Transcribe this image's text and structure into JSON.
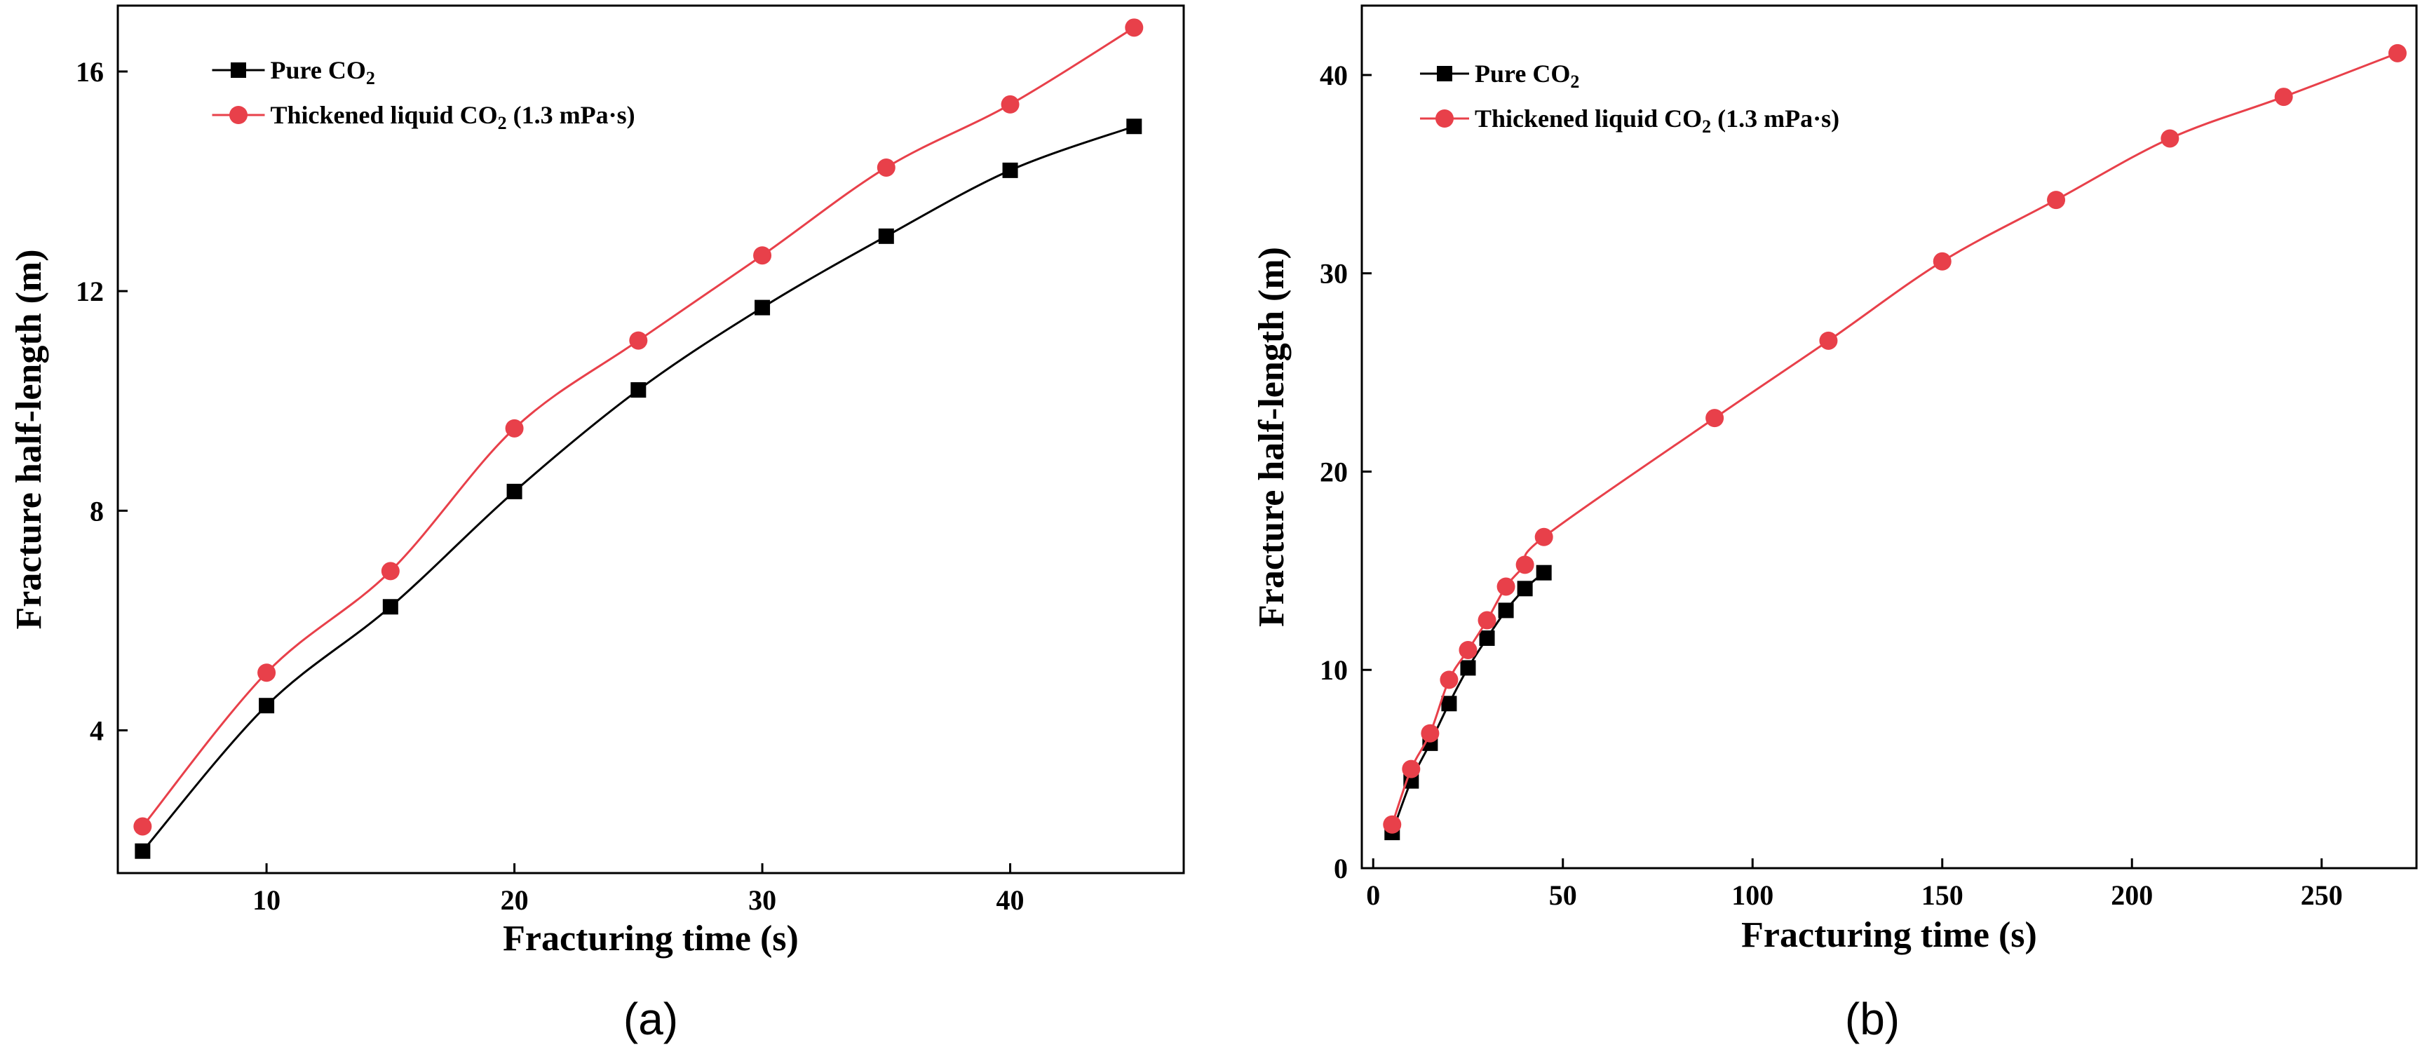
{
  "chart_data": [
    {
      "type": "line",
      "panel_label": "(a)",
      "xlabel": "Fracturing time (s)",
      "ylabel": "Fracture half-length (m)",
      "xlim": [
        4,
        47
      ],
      "ylim": [
        1.4,
        17.2
      ],
      "xticks": [
        10,
        20,
        30,
        40
      ],
      "yticks": [
        4,
        8,
        12,
        16
      ],
      "legend_position": "top-left",
      "series": [
        {
          "name": "Pure CO2",
          "label_prefix": "Pure CO",
          "label_sub": "2",
          "label_suffix": "",
          "color": "#000000",
          "marker": "square",
          "x": [
            5,
            10,
            15,
            20,
            25,
            30,
            35,
            40,
            45
          ],
          "values": [
            1.8,
            4.45,
            6.25,
            8.35,
            10.2,
            11.7,
            13.0,
            14.2,
            15.0
          ]
        },
        {
          "name": "Thickened liquid CO2 (1.3 mPa·s)",
          "label_prefix": "Thickened liquid CO",
          "label_sub": "2",
          "label_suffix": " (1.3 mPa·s)",
          "color": "#e8404a",
          "marker": "circle",
          "x": [
            5,
            10,
            15,
            20,
            25,
            30,
            35,
            40,
            45
          ],
          "values": [
            2.25,
            5.05,
            6.9,
            9.5,
            11.1,
            12.65,
            14.25,
            15.4,
            16.8
          ]
        }
      ]
    },
    {
      "type": "line",
      "panel_label": "(b)",
      "xlabel": "Fracturing time (s)",
      "ylabel": "Fracture half-length (m)",
      "xlim": [
        -3,
        275
      ],
      "ylim": [
        0,
        43.5
      ],
      "xticks": [
        0,
        50,
        100,
        150,
        200,
        250
      ],
      "yticks": [
        0,
        10,
        20,
        30,
        40
      ],
      "legend_position": "top-left",
      "series": [
        {
          "name": "Pure CO2",
          "label_prefix": "Pure CO",
          "label_sub": "2",
          "label_suffix": "",
          "color": "#000000",
          "marker": "square",
          "x": [
            5,
            10,
            15,
            20,
            25,
            30,
            35,
            40,
            45
          ],
          "values": [
            1.8,
            4.4,
            6.3,
            8.3,
            10.1,
            11.6,
            13.0,
            14.1,
            14.9
          ]
        },
        {
          "name": "Thickened liquid CO2 (1.3 mPa·s)",
          "label_prefix": "Thickened liquid CO",
          "label_sub": "2",
          "label_suffix": " (1.3 mPa·s)",
          "color": "#e8404a",
          "marker": "circle",
          "x": [
            5,
            10,
            15,
            20,
            25,
            30,
            35,
            40,
            45,
            90,
            120,
            150,
            180,
            210,
            240,
            270
          ],
          "values": [
            2.2,
            5.0,
            6.8,
            9.5,
            11.0,
            12.5,
            14.2,
            15.3,
            16.7,
            22.7,
            26.6,
            30.6,
            33.7,
            36.8,
            38.9,
            41.1
          ]
        }
      ]
    }
  ]
}
